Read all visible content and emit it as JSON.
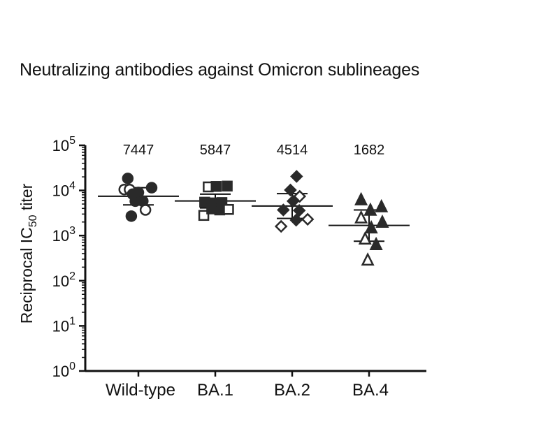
{
  "chart_data": {
    "type": "scatter",
    "title": "Neutralizing antibodies against Omicron sublineages",
    "ylabel": {
      "prefix": "Reciprocal IC",
      "subscript": "50",
      "suffix": " titer"
    },
    "yscale": "log",
    "ylim": [
      1,
      100000
    ],
    "yticks": [
      {
        "value": 1,
        "base": "10",
        "exp": "0"
      },
      {
        "value": 10,
        "base": "10",
        "exp": "1"
      },
      {
        "value": 100,
        "base": "10",
        "exp": "2"
      },
      {
        "value": 1000,
        "base": "10",
        "exp": "3"
      },
      {
        "value": 10000,
        "base": "10",
        "exp": "4"
      },
      {
        "value": 100000,
        "base": "10",
        "exp": "5"
      }
    ],
    "categories": [
      "Wild-type",
      "BA.1",
      "BA.2",
      "BA.4"
    ],
    "geomean_labels": [
      "7447",
      "5847",
      "4514",
      "1682"
    ],
    "summary": [
      {
        "center": 7447,
        "lower": 4800,
        "upper": 11500
      },
      {
        "center": 5847,
        "lower": 4100,
        "upper": 8300
      },
      {
        "center": 4514,
        "lower": 2400,
        "upper": 8500
      },
      {
        "center": 1682,
        "lower": 750,
        "upper": 3700
      }
    ],
    "series": [
      {
        "marker": "circle",
        "points": [
          {
            "x": -0.24,
            "y": 18500,
            "filled": true
          },
          {
            "x": -0.32,
            "y": 10500,
            "filled": false
          },
          {
            "x": -0.2,
            "y": 10500,
            "filled": false
          },
          {
            "x": -0.13,
            "y": 8300,
            "filled": true
          },
          {
            "x": 0.0,
            "y": 9000,
            "filled": true
          },
          {
            "x": 0.3,
            "y": 11500,
            "filled": true
          },
          {
            "x": -0.07,
            "y": 5800,
            "filled": true
          },
          {
            "x": 0.1,
            "y": 5800,
            "filled": true
          },
          {
            "x": -0.16,
            "y": 2700,
            "filled": true
          },
          {
            "x": 0.16,
            "y": 3700,
            "filled": false
          }
        ]
      },
      {
        "marker": "square",
        "points": [
          {
            "x": -0.16,
            "y": 12000,
            "filled": false
          },
          {
            "x": 0.02,
            "y": 12300,
            "filled": true
          },
          {
            "x": 0.27,
            "y": 12500,
            "filled": true
          },
          {
            "x": -0.24,
            "y": 5500,
            "filled": true
          },
          {
            "x": -0.04,
            "y": 5300,
            "filled": true
          },
          {
            "x": 0.15,
            "y": 5400,
            "filled": true
          },
          {
            "x": -0.26,
            "y": 2800,
            "filled": false
          },
          {
            "x": -0.08,
            "y": 3900,
            "filled": true
          },
          {
            "x": 0.1,
            "y": 3700,
            "filled": true
          },
          {
            "x": 0.3,
            "y": 3800,
            "filled": false
          }
        ]
      },
      {
        "marker": "diamond",
        "points": [
          {
            "x": 0.1,
            "y": 20500,
            "filled": true
          },
          {
            "x": -0.04,
            "y": 10200,
            "filled": true
          },
          {
            "x": 0.17,
            "y": 7400,
            "filled": false
          },
          {
            "x": 0.02,
            "y": 5800,
            "filled": true
          },
          {
            "x": -0.2,
            "y": 3700,
            "filled": true
          },
          {
            "x": 0.16,
            "y": 3600,
            "filled": true
          },
          {
            "x": -0.25,
            "y": 1600,
            "filled": false
          },
          {
            "x": 0.09,
            "y": 2200,
            "filled": true
          },
          {
            "x": 0.35,
            "y": 2300,
            "filled": false
          }
        ]
      },
      {
        "marker": "triangle",
        "points": [
          {
            "x": -0.18,
            "y": 6300,
            "filled": true
          },
          {
            "x": 0.28,
            "y": 4400,
            "filled": true
          },
          {
            "x": 0.03,
            "y": 3700,
            "filled": true
          },
          {
            "x": -0.18,
            "y": 2500,
            "filled": false
          },
          {
            "x": 0.3,
            "y": 2000,
            "filled": true
          },
          {
            "x": 0.05,
            "y": 1500,
            "filled": true
          },
          {
            "x": -0.09,
            "y": 850,
            "filled": false
          },
          {
            "x": 0.16,
            "y": 640,
            "filled": true
          },
          {
            "x": -0.03,
            "y": 290,
            "filled": false
          }
        ]
      }
    ]
  }
}
